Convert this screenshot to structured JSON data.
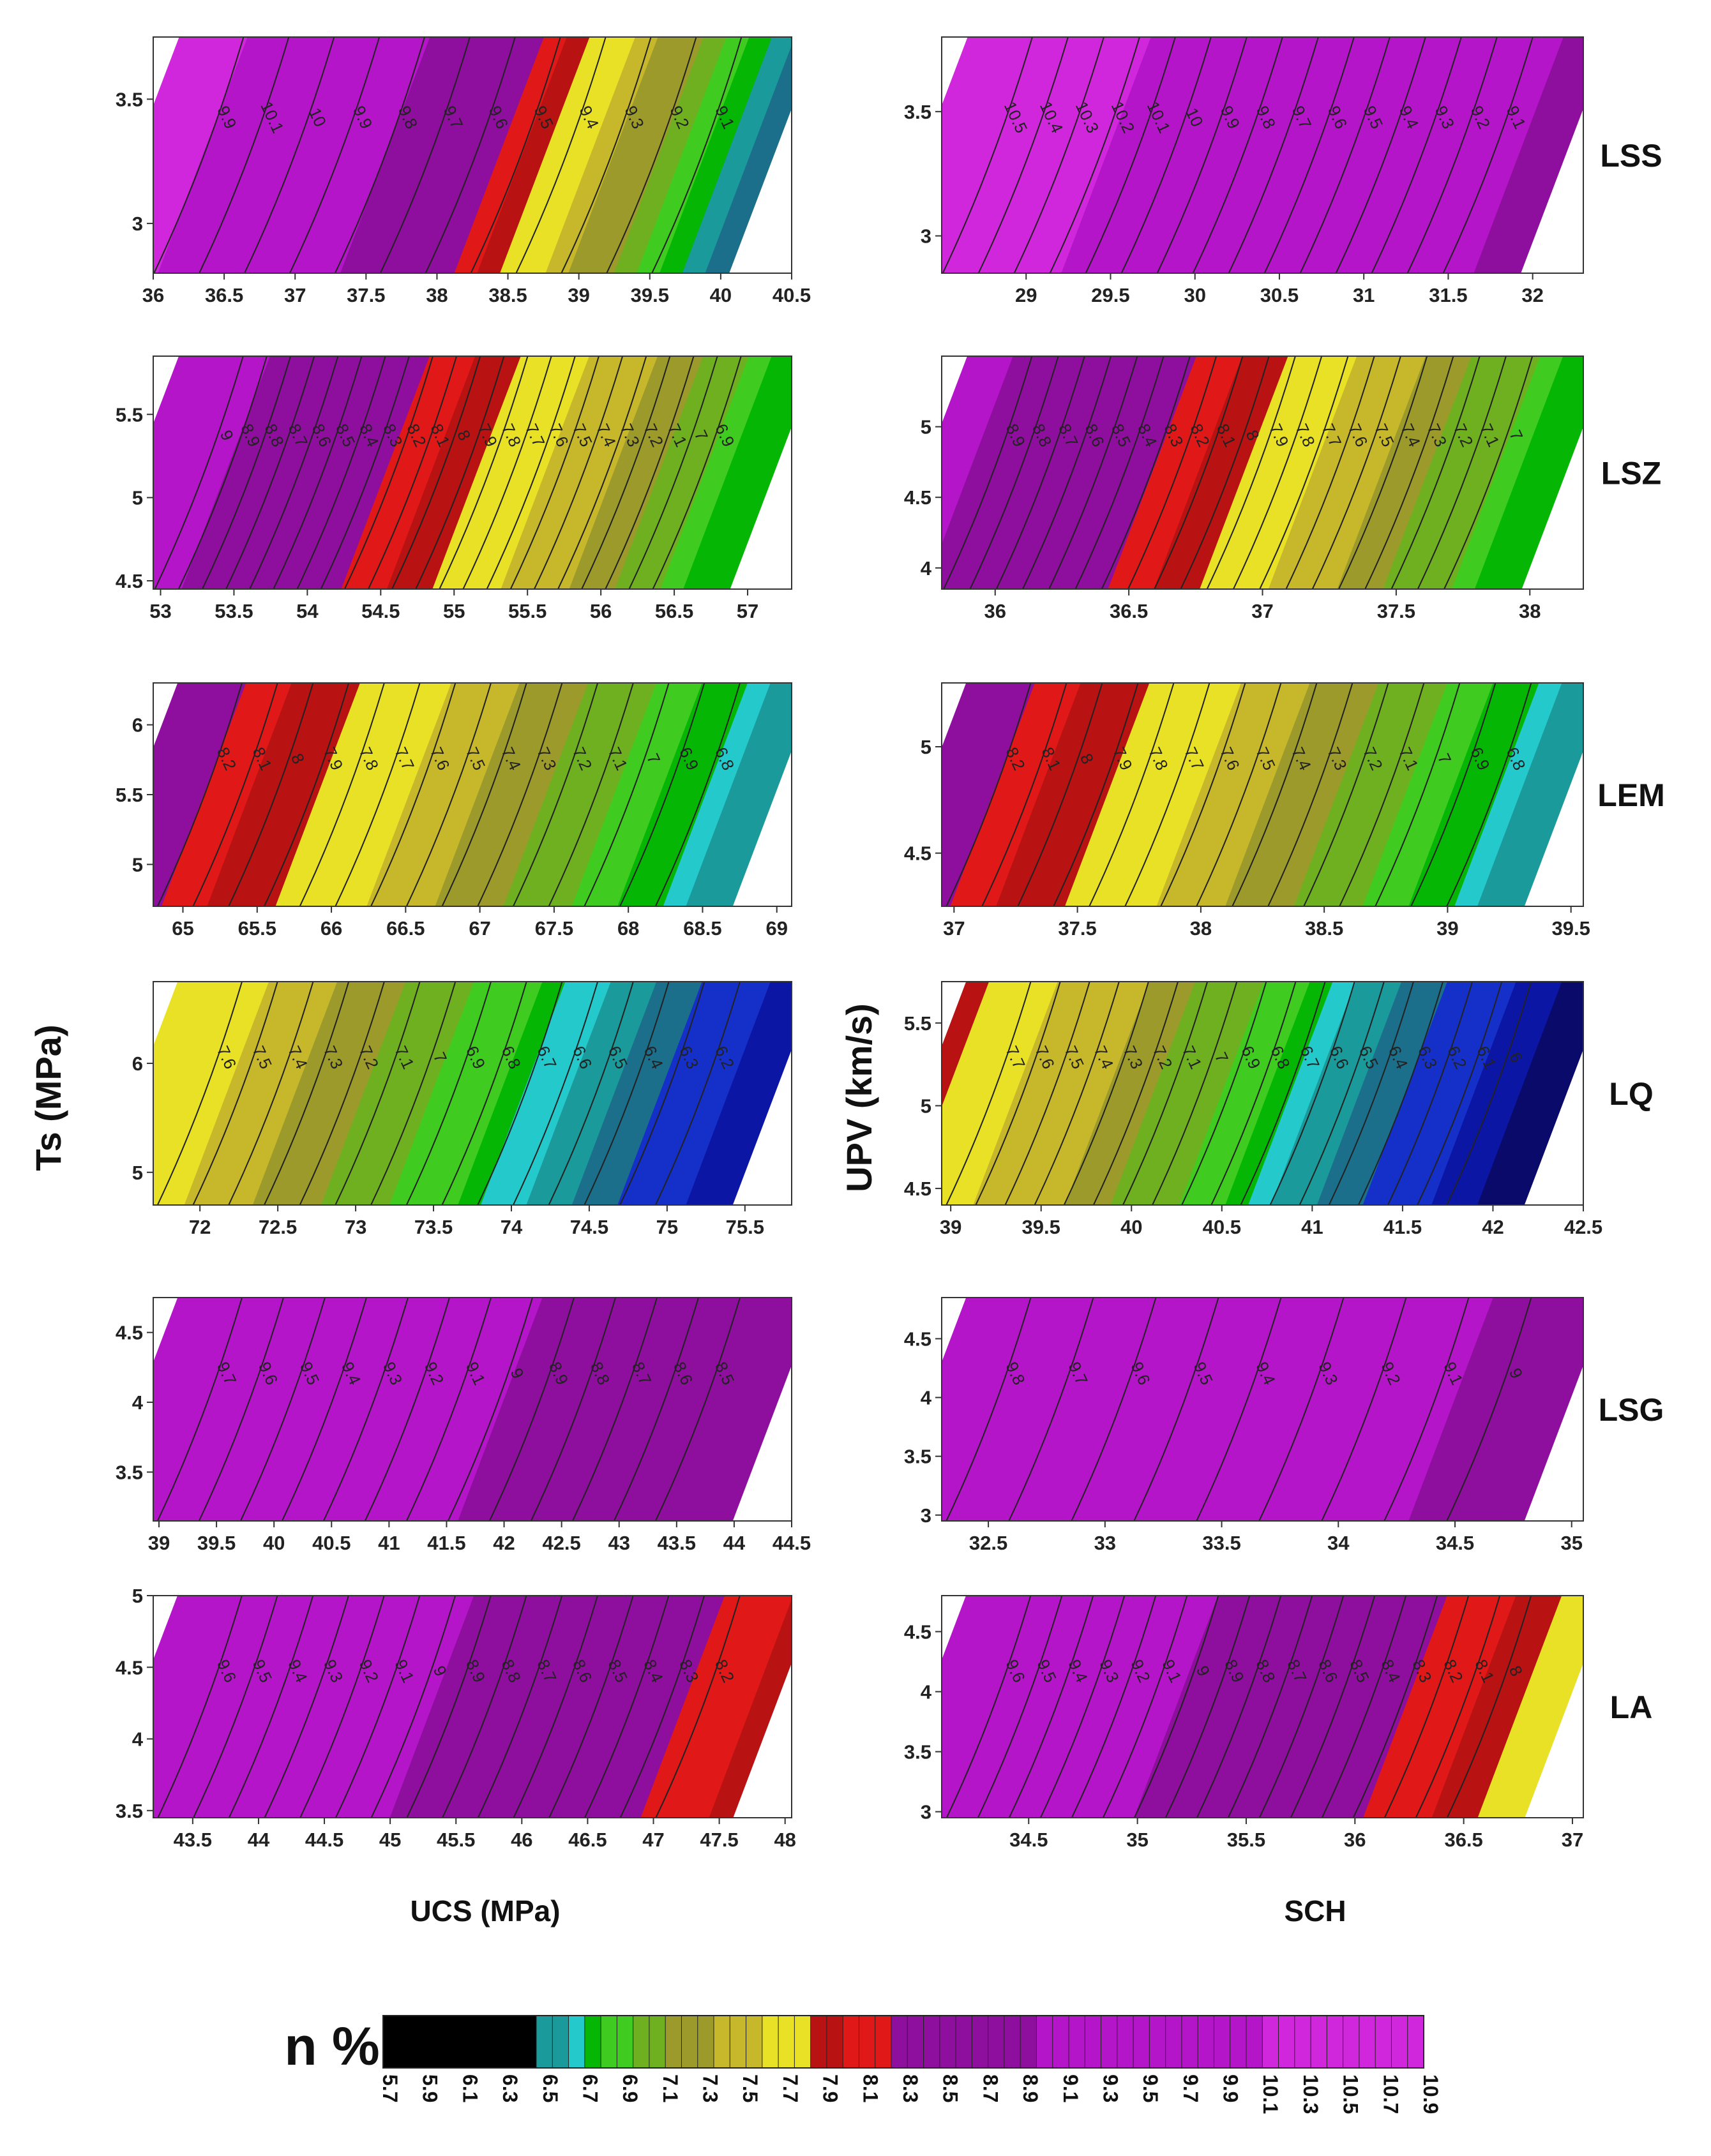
{
  "labels": {
    "ylabel_left": "Ts (MPa)",
    "ylabel_right": "UPV (km/s)",
    "xlabel_left": "UCS (MPa)",
    "xlabel_right": "SCH",
    "colorbar_title": "n %"
  },
  "colors": {
    "levels": [
      "#000000",
      "#0a0a6a",
      "#0b16a4",
      "#1530c8",
      "#1b6f8a",
      "#1a9a9a",
      "#24c9cc",
      "#05b605",
      "#40cb20",
      "#6fb020",
      "#9c9a2a",
      "#c7b72b",
      "#e9e125",
      "#b81212",
      "#e01818",
      "#8e0e9e",
      "#b515c8",
      "#d127dc"
    ]
  },
  "colorbar": {
    "ticks": [
      "5.7",
      "5.9",
      "6.1",
      "6.3",
      "6.5",
      "6.7",
      "6.9",
      "7.1",
      "7.3",
      "7.5",
      "7.7",
      "7.9",
      "8.1",
      "8.3",
      "8.5",
      "8.7",
      "8.9",
      "9.1",
      "9.3",
      "9.5",
      "9.7",
      "9.9",
      "10.1",
      "10.3",
      "10.5",
      "10.7",
      "10.9"
    ]
  },
  "chart_data": [
    {
      "type": "contour",
      "rock": "",
      "x_name": "UCS (MPa)",
      "y_name": "Ts (MPa)",
      "xlim": [
        36,
        40.5
      ],
      "ylim": [
        2.8,
        3.75
      ],
      "xticks": [
        "36",
        "36.5",
        "37",
        "37.5",
        "38",
        "38.5",
        "39",
        "39.5",
        "40",
        "40.5"
      ],
      "yticks": [
        "3",
        "3.5"
      ],
      "contours": [
        "9.9",
        "10.1",
        "10",
        "9.9",
        "9.8",
        "9.7",
        "9.6",
        "9.5",
        "9.4",
        "9.3",
        "9.2",
        "9.1"
      ],
      "nmax": 10.6,
      "nmin": 6.4
    },
    {
      "type": "contour",
      "rock": "LSS",
      "x_name": "SCH",
      "y_name": "UPV (km/s)",
      "xlim": [
        28.5,
        32.3
      ],
      "ylim": [
        2.85,
        3.8
      ],
      "xticks": [
        "29",
        "29.5",
        "30",
        "30.5",
        "31",
        "31.5",
        "32"
      ],
      "yticks": [
        "3",
        "3.5"
      ],
      "contours": [
        "10.5",
        "10.4",
        "10.3",
        "10.2",
        "10.1",
        "10",
        "9.9",
        "9.8",
        "9.7",
        "9.6",
        "9.5",
        "9.4",
        "9.3",
        "9.2",
        "9.1"
      ],
      "nmax": 10.7,
      "nmin": 8.9
    },
    {
      "type": "contour",
      "rock": "",
      "x_name": "UCS (MPa)",
      "y_name": "Ts (MPa)",
      "xlim": [
        52.95,
        57.3
      ],
      "ylim": [
        4.45,
        5.85
      ],
      "xticks": [
        "53",
        "53.5",
        "54",
        "54.5",
        "55",
        "55.5",
        "56",
        "56.5",
        "57"
      ],
      "yticks": [
        "4.5",
        "5",
        "5.5"
      ],
      "contours": [
        "9",
        "8.9",
        "8.8",
        "8.7",
        "8.6",
        "8.5",
        "8.4",
        "8.3",
        "8.2",
        "8.1",
        "8",
        "7.9",
        "7.8",
        "7.7",
        "7.6",
        "7.5",
        "7.4",
        "7.3",
        "7.2",
        "7.1",
        "7",
        "6.9"
      ],
      "nmax": 9.3,
      "nmin": 6.7
    },
    {
      "type": "contour",
      "rock": "LSZ",
      "x_name": "SCH",
      "y_name": "UPV (km/s)",
      "xlim": [
        35.8,
        38.2
      ],
      "ylim": [
        3.85,
        5.5
      ],
      "xticks": [
        "36",
        "36.5",
        "37",
        "37.5",
        "38"
      ],
      "yticks": [
        "4",
        "4.5",
        "5"
      ],
      "contours": [
        "8.9",
        "8.8",
        "8.7",
        "8.6",
        "8.5",
        "8.4",
        "8.3",
        "8.2",
        "8.1",
        "8",
        "7.9",
        "7.8",
        "7.7",
        "7.6",
        "7.5",
        "7.4",
        "7.3",
        "7.2",
        "7.1",
        "7"
      ],
      "nmax": 9.1,
      "nmin": 6.7
    },
    {
      "type": "contour",
      "rock": "",
      "x_name": "UCS (MPa)",
      "y_name": "Ts (MPa)",
      "xlim": [
        64.8,
        69.1
      ],
      "ylim": [
        4.7,
        6.3
      ],
      "xticks": [
        "65",
        "65.5",
        "66",
        "66.5",
        "67",
        "67.5",
        "68",
        "68.5",
        "69"
      ],
      "yticks": [
        "5",
        "5.5",
        "6"
      ],
      "contours": [
        "8.2",
        "8.1",
        "8",
        "7.9",
        "7.8",
        "7.7",
        "7.6",
        "7.5",
        "7.4",
        "7.3",
        "7.2",
        "7.1",
        "7",
        "6.9",
        "6.8"
      ],
      "nmax": 8.4,
      "nmin": 6.5
    },
    {
      "type": "contour",
      "rock": "LEM",
      "x_name": "SCH",
      "y_name": "UPV (km/s)",
      "xlim": [
        36.95,
        39.55
      ],
      "ylim": [
        4.25,
        5.3
      ],
      "xticks": [
        "37",
        "37.5",
        "38",
        "38.5",
        "39",
        "39.5"
      ],
      "yticks": [
        "4.5",
        "5"
      ],
      "contours": [
        "8.2",
        "8.1",
        "8",
        "7.9",
        "7.8",
        "7.7",
        "7.6",
        "7.5",
        "7.4",
        "7.3",
        "7.2",
        "7.1",
        "7",
        "6.9",
        "6.8"
      ],
      "nmax": 8.4,
      "nmin": 6.5
    },
    {
      "type": "contour",
      "rock": "",
      "x_name": "UCS (MPa)",
      "y_name": "Ts (MPa)",
      "xlim": [
        71.7,
        75.8
      ],
      "ylim": [
        4.7,
        6.75
      ],
      "xticks": [
        "72",
        "72.5",
        "73",
        "73.5",
        "74",
        "74.5",
        "75",
        "75.5"
      ],
      "yticks": [
        "5",
        "6"
      ],
      "contours": [
        "7.6",
        "7.5",
        "7.4",
        "7.3",
        "7.2",
        "7.1",
        "7",
        "6.9",
        "6.8",
        "6.7",
        "6.6",
        "6.5",
        "6.4",
        "6.3",
        "6.2"
      ],
      "nmax": 7.8,
      "nmin": 6.0
    },
    {
      "type": "contour",
      "rock": "LQ",
      "x_name": "SCH",
      "y_name": "UPV (km/s)",
      "xlim": [
        38.95,
        42.5
      ],
      "ylim": [
        4.4,
        5.75
      ],
      "xticks": [
        "39",
        "39.5",
        "40",
        "40.5",
        "41",
        "41.5",
        "42",
        "42.5"
      ],
      "yticks": [
        "4.5",
        "5",
        "5.5"
      ],
      "contours": [
        "7.7",
        "7.6",
        "7.5",
        "7.4",
        "7.3",
        "7.2",
        "7.1",
        "7",
        "6.9",
        "6.8",
        "6.7",
        "6.6",
        "6.5",
        "6.4",
        "6.3",
        "6.2",
        "6.1",
        "6"
      ],
      "nmax": 7.9,
      "nmin": 5.8
    },
    {
      "type": "contour",
      "rock": "",
      "x_name": "UCS (MPa)",
      "y_name": "Ts (MPa)",
      "xlim": [
        38.95,
        44.5
      ],
      "ylim": [
        3.15,
        4.75
      ],
      "xticks": [
        "39",
        "39.5",
        "40",
        "40.5",
        "41",
        "41.5",
        "42",
        "42.5",
        "43",
        "43.5",
        "44",
        "44.5"
      ],
      "yticks": [
        "3.5",
        "4",
        "4.5"
      ],
      "contours": [
        "9.7",
        "9.6",
        "9.5",
        "9.4",
        "9.3",
        "9.2",
        "9.1",
        "9",
        "8.9",
        "8.8",
        "8.7",
        "8.6",
        "8.5"
      ],
      "nmax": 9.9,
      "nmin": 8.3
    },
    {
      "type": "contour",
      "rock": "LSG",
      "x_name": "SCH",
      "y_name": "UPV (km/s)",
      "xlim": [
        32.3,
        35.05
      ],
      "ylim": [
        2.95,
        4.85
      ],
      "xticks": [
        "32.5",
        "33",
        "33.5",
        "34",
        "34.5",
        "35"
      ],
      "yticks": [
        "3",
        "3.5",
        "4",
        "4.5"
      ],
      "contours": [
        "9.8",
        "9.7",
        "9.6",
        "9.5",
        "9.4",
        "9.3",
        "9.2",
        "9.1",
        "9"
      ],
      "nmax": 10.0,
      "nmin": 8.8
    },
    {
      "type": "contour",
      "rock": "",
      "x_name": "UCS (MPa)",
      "y_name": "Ts (MPa)",
      "xlim": [
        43.2,
        48.05
      ],
      "ylim": [
        3.45,
        5.0
      ],
      "xticks": [
        "43.5",
        "44",
        "44.5",
        "45",
        "45.5",
        "46",
        "46.5",
        "47",
        "47.5",
        "48"
      ],
      "yticks": [
        "3.5",
        "4",
        "4.5",
        "5"
      ],
      "contours": [
        "9.6",
        "9.5",
        "9.4",
        "9.3",
        "9.2",
        "9.1",
        "9",
        "8.9",
        "8.8",
        "8.7",
        "8.6",
        "8.5",
        "8.4",
        "8.3",
        "8.2"
      ],
      "nmax": 9.8,
      "nmin": 8.0
    },
    {
      "type": "contour",
      "rock": "LA",
      "x_name": "SCH",
      "y_name": "UPV (km/s)",
      "xlim": [
        34.1,
        37.05
      ],
      "ylim": [
        2.95,
        4.8
      ],
      "xticks": [
        "34.5",
        "35",
        "35.5",
        "36",
        "36.5",
        "37"
      ],
      "yticks": [
        "3",
        "3.5",
        "4",
        "4.5"
      ],
      "contours": [
        "9.6",
        "9.5",
        "9.4",
        "9.3",
        "9.2",
        "9.1",
        "9",
        "8.9",
        "8.8",
        "8.7",
        "8.6",
        "8.5",
        "8.4",
        "8.3",
        "8.2",
        "8.1",
        "8"
      ],
      "nmax": 9.8,
      "nmin": 7.8
    }
  ]
}
